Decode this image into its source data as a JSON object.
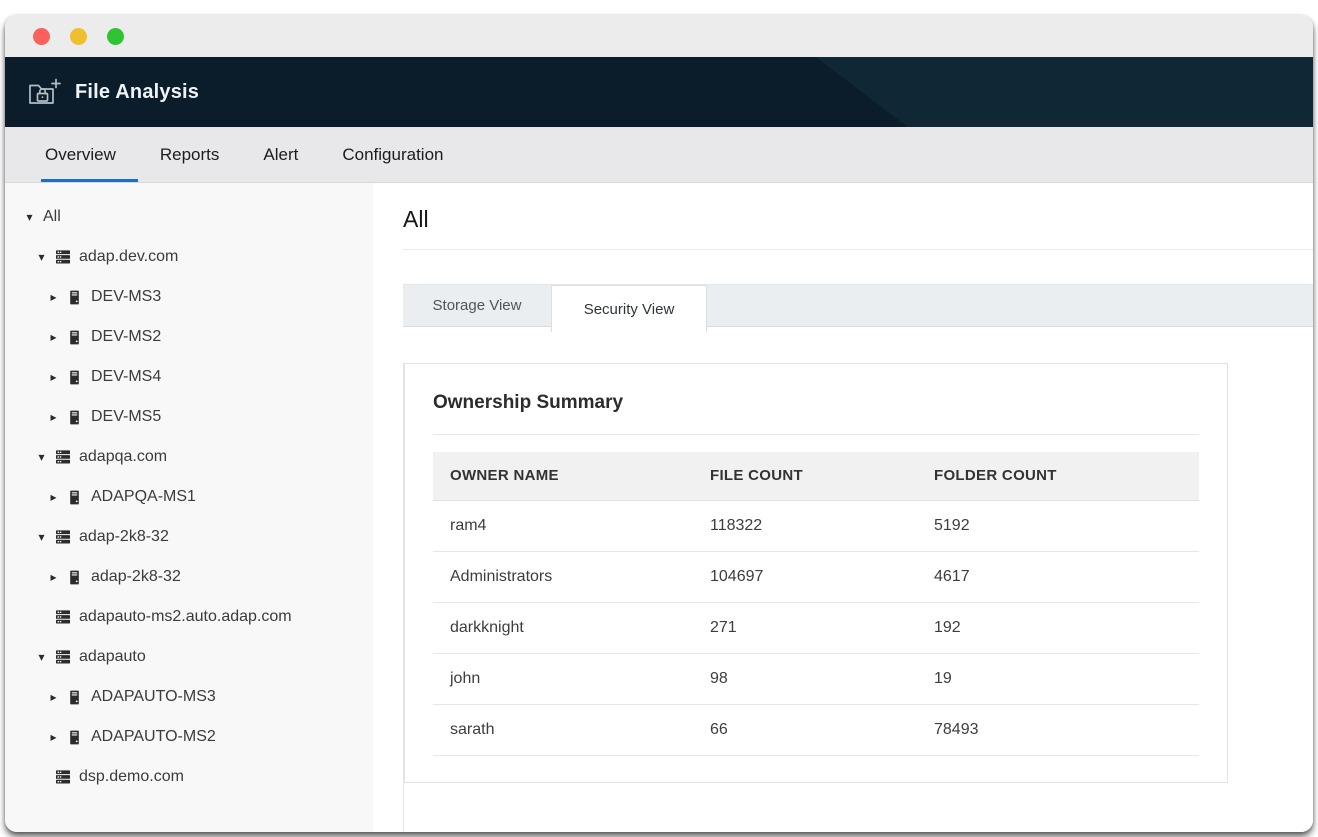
{
  "window": {
    "traffic_lights": [
      {
        "name": "close",
        "color": "#f9615a"
      },
      {
        "name": "minimize",
        "color": "#f0bf2f"
      },
      {
        "name": "zoom",
        "color": "#30c434"
      }
    ]
  },
  "app_header": {
    "title": "File Analysis",
    "icon": "folder-lock-plus-icon",
    "bg_color": "#0b1d2a",
    "bg_accent_color": "#102736"
  },
  "nav": {
    "accent_color": "#1b70c2",
    "tabs": [
      {
        "label": "Overview",
        "active": true
      },
      {
        "label": "Reports",
        "active": false
      },
      {
        "label": "Alert",
        "active": false
      },
      {
        "label": "Configuration",
        "active": false
      }
    ]
  },
  "sidebar": {
    "tree": [
      {
        "label": "All",
        "level": 0,
        "expanded": true,
        "icon": null
      },
      {
        "label": "adap.dev.com",
        "level": 1,
        "expanded": true,
        "icon": "domain"
      },
      {
        "label": "DEV-MS3",
        "level": 2,
        "expanded": false,
        "icon": "server"
      },
      {
        "label": "DEV-MS2",
        "level": 2,
        "expanded": false,
        "icon": "server"
      },
      {
        "label": "DEV-MS4",
        "level": 2,
        "expanded": false,
        "icon": "server"
      },
      {
        "label": "DEV-MS5",
        "level": 2,
        "expanded": false,
        "icon": "server"
      },
      {
        "label": "adapqa.com",
        "level": 1,
        "expanded": true,
        "icon": "domain"
      },
      {
        "label": "ADAPQA-MS1",
        "level": 2,
        "expanded": false,
        "icon": "server"
      },
      {
        "label": "adap-2k8-32",
        "level": 1,
        "expanded": true,
        "icon": "domain"
      },
      {
        "label": "adap-2k8-32",
        "level": 2,
        "expanded": false,
        "icon": "server"
      },
      {
        "label": "adapauto-ms2.auto.adap.com",
        "level": 1,
        "expanded": null,
        "icon": "domain"
      },
      {
        "label": "adapauto",
        "level": 1,
        "expanded": true,
        "icon": "domain"
      },
      {
        "label": "ADAPAUTO-MS3",
        "level": 2,
        "expanded": false,
        "icon": "server"
      },
      {
        "label": "ADAPAUTO-MS2",
        "level": 2,
        "expanded": false,
        "icon": "server"
      },
      {
        "label": "dsp.demo.com",
        "level": 1,
        "expanded": null,
        "icon": "domain"
      }
    ]
  },
  "main": {
    "page_title": "All",
    "view_tabs": [
      {
        "label": "Storage View",
        "active": false
      },
      {
        "label": "Security View",
        "active": true
      }
    ],
    "card": {
      "title": "Ownership Summary",
      "table": {
        "columns": [
          "OWNER NAME",
          "FILE COUNT",
          "FOLDER COUNT"
        ],
        "rows": [
          [
            "ram4",
            "118322",
            "5192"
          ],
          [
            "Administrators",
            "104697",
            "4617"
          ],
          [
            "darkknight",
            "271",
            "192"
          ],
          [
            "john",
            "98",
            "19"
          ],
          [
            "sarath",
            "66",
            "78493"
          ]
        ]
      }
    }
  }
}
